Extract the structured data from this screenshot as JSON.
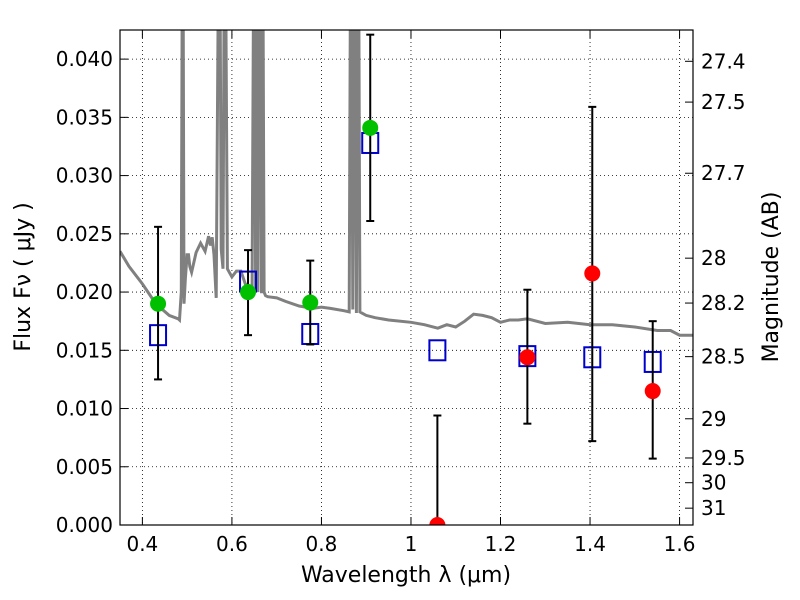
{
  "chart_data": {
    "type": "scatter",
    "xlabel": "Wavelength  λ (μm)",
    "ylabel": "Flux  Fν  ( μJy )",
    "y2label": "Magnitude (AB)",
    "xlim": [
      0.35,
      1.63
    ],
    "ylim": [
      0.0,
      0.0425
    ],
    "grid": true,
    "x_ticks": [
      0.4,
      0.6,
      0.8,
      1.0,
      1.2,
      1.4,
      1.6
    ],
    "x_tick_labels": [
      "0.4",
      "0.6",
      "0.8",
      "1",
      "1.2",
      "1.4",
      "1.6"
    ],
    "y_ticks": [
      0.0,
      0.005,
      0.01,
      0.015,
      0.02,
      0.025,
      0.03,
      0.035,
      0.04
    ],
    "y_tick_labels": [
      "0.000",
      "0.005",
      "0.010",
      "0.015",
      "0.020",
      "0.025",
      "0.030",
      "0.035",
      "0.040"
    ],
    "mag_ticks": [
      27.4,
      27.5,
      27.7,
      28.0,
      28.2,
      28.5,
      29.0,
      29.5,
      30.0,
      31.0
    ],
    "mag_tick_labels": [
      "27.4",
      "27.5",
      "27.7",
      "28",
      "28.2",
      "28.5",
      "29",
      "29.5",
      "30",
      "31"
    ],
    "colors": {
      "detected": "#00c000",
      "undetected": "#ff0000",
      "model_box": "#0000cc",
      "template": "#808080",
      "errorbar": "#000000"
    },
    "observations": [
      {
        "x": 0.435,
        "flux": 0.019,
        "err_low": 0.0065,
        "err_high": 0.0066,
        "detected": true
      },
      {
        "x": 0.636,
        "flux": 0.02,
        "err_low": 0.0037,
        "err_high": 0.0036,
        "detected": true
      },
      {
        "x": 0.775,
        "flux": 0.0191,
        "err_low": 0.0036,
        "err_high": 0.0036,
        "detected": true
      },
      {
        "x": 0.909,
        "flux": 0.0341,
        "err_low": 0.008,
        "err_high": 0.008,
        "detected": true
      },
      {
        "x": 1.059,
        "flux": 0.0,
        "err_low": 0.0,
        "err_high": 0.0094,
        "detected": false
      },
      {
        "x": 1.26,
        "flux": 0.0144,
        "err_low": 0.0057,
        "err_high": 0.0058,
        "detected": false
      },
      {
        "x": 1.405,
        "flux": 0.0216,
        "err_low": 0.0144,
        "err_high": 0.0143,
        "detected": false
      },
      {
        "x": 1.54,
        "flux": 0.0115,
        "err_low": 0.0058,
        "err_high": 0.006,
        "detected": false
      }
    ],
    "model_fluxes": [
      {
        "x": 0.435,
        "flux": 0.0163
      },
      {
        "x": 0.636,
        "flux": 0.0209
      },
      {
        "x": 0.775,
        "flux": 0.0164
      },
      {
        "x": 0.909,
        "flux": 0.0328
      },
      {
        "x": 1.059,
        "flux": 0.015
      },
      {
        "x": 1.26,
        "flux": 0.0145
      },
      {
        "x": 1.405,
        "flux": 0.0144
      },
      {
        "x": 1.54,
        "flux": 0.014
      }
    ],
    "template_spectrum": {
      "x": [
        0.35,
        0.37,
        0.4,
        0.43,
        0.46,
        0.48,
        0.483,
        0.487,
        0.49,
        0.493,
        0.496,
        0.5,
        0.503,
        0.506,
        0.51,
        0.52,
        0.53,
        0.54,
        0.548,
        0.552,
        0.556,
        0.56,
        0.565,
        0.572,
        0.576,
        0.58,
        0.584,
        0.59,
        0.6,
        0.61,
        0.62,
        0.63,
        0.64,
        0.645,
        0.65,
        0.653,
        0.656,
        0.658,
        0.662,
        0.666,
        0.668,
        0.672,
        0.675,
        0.68,
        0.7,
        0.72,
        0.75,
        0.78,
        0.8,
        0.82,
        0.85,
        0.862,
        0.866,
        0.87,
        0.874,
        0.878,
        0.882,
        0.886,
        0.89,
        0.9,
        0.92,
        0.95,
        1.0,
        1.03,
        1.06,
        1.08,
        1.1,
        1.12,
        1.14,
        1.16,
        1.18,
        1.2,
        1.22,
        1.24,
        1.26,
        1.3,
        1.35,
        1.4,
        1.45,
        1.5,
        1.55,
        1.58,
        1.6,
        1.63
      ],
      "flux": [
        0.0235,
        0.0222,
        0.0207,
        0.019,
        0.018,
        0.0177,
        0.0176,
        0.02,
        0.06,
        0.019,
        0.0212,
        0.0232,
        0.0232,
        0.0222,
        0.0217,
        0.0234,
        0.0242,
        0.0235,
        0.0248,
        0.024,
        0.0247,
        0.0232,
        0.0195,
        0.06,
        0.0237,
        0.022,
        0.06,
        0.022,
        0.0213,
        0.0218,
        0.0218,
        0.0207,
        0.0205,
        0.0205,
        0.06,
        0.0201,
        0.06,
        0.02,
        0.06,
        0.0199,
        0.06,
        0.02,
        0.0197,
        0.0196,
        0.0195,
        0.0192,
        0.0188,
        0.0186,
        0.0187,
        0.0186,
        0.0184,
        0.0183,
        0.06,
        0.0185,
        0.06,
        0.0182,
        0.06,
        0.0183,
        0.0182,
        0.018,
        0.0178,
        0.0176,
        0.0174,
        0.0172,
        0.0169,
        0.0172,
        0.017,
        0.0175,
        0.0181,
        0.018,
        0.0178,
        0.0174,
        0.0176,
        0.0176,
        0.0177,
        0.0173,
        0.0174,
        0.0172,
        0.0172,
        0.017,
        0.0167,
        0.0167,
        0.0163,
        0.0163
      ]
    }
  }
}
